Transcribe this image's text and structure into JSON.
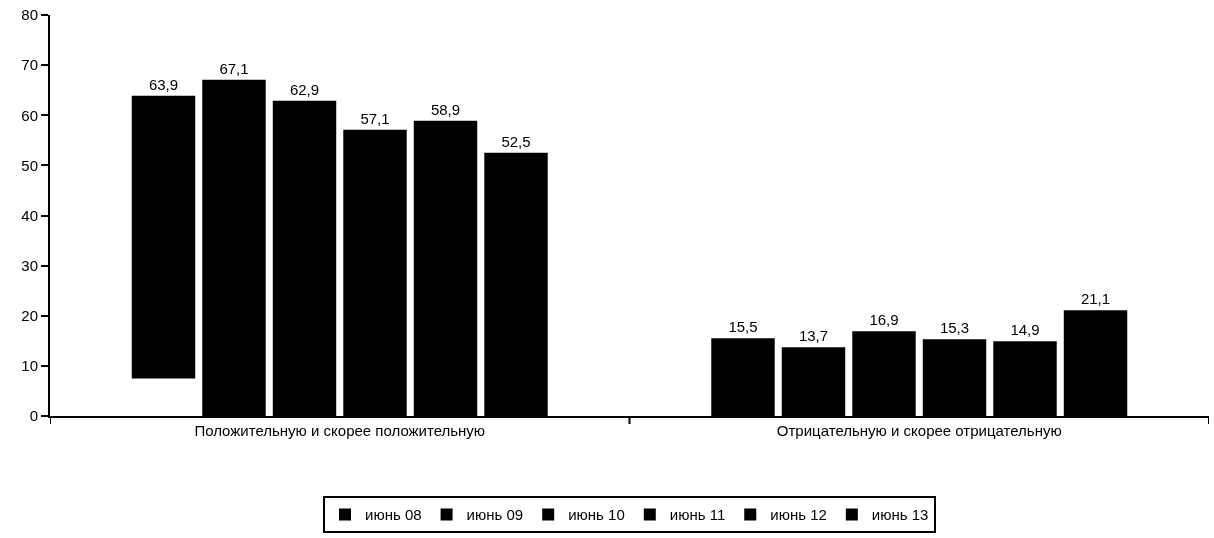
{
  "chart_data": {
    "type": "bar",
    "categories": [
      "Положительную и скорее положительную",
      "Отрицательную и скорее отрицательную"
    ],
    "series": [
      {
        "name": "июнь 08",
        "color": "#000000",
        "base": [
          7.5,
          0
        ],
        "values": [
          56.4,
          15.5
        ],
        "value_labels": [
          "63,9",
          "15,5"
        ]
      },
      {
        "name": "июнь 09",
        "color": "#000000",
        "values": [
          67.1,
          13.7
        ],
        "value_labels": [
          "67,1",
          "13,7"
        ]
      },
      {
        "name": "июнь 10",
        "color": "#000000",
        "values": [
          62.9,
          16.9
        ],
        "value_labels": [
          "62,9",
          "16,9"
        ]
      },
      {
        "name": "июнь 11",
        "color": "#000000",
        "values": [
          57.1,
          15.3
        ],
        "value_labels": [
          "57,1",
          "15,3"
        ]
      },
      {
        "name": "июнь 12",
        "color": "#000000",
        "values": [
          58.9,
          14.9
        ],
        "value_labels": [
          "58,9",
          "14,9"
        ]
      },
      {
        "name": "июнь 13",
        "color": "#000000",
        "values": [
          52.5,
          21.1
        ],
        "value_labels": [
          "52,5",
          "21,1"
        ]
      }
    ],
    "ylim": [
      0,
      80
    ],
    "yticks": [
      0,
      10,
      20,
      30,
      40,
      50,
      60,
      70,
      80
    ],
    "grid": false,
    "legend": "bottom"
  }
}
